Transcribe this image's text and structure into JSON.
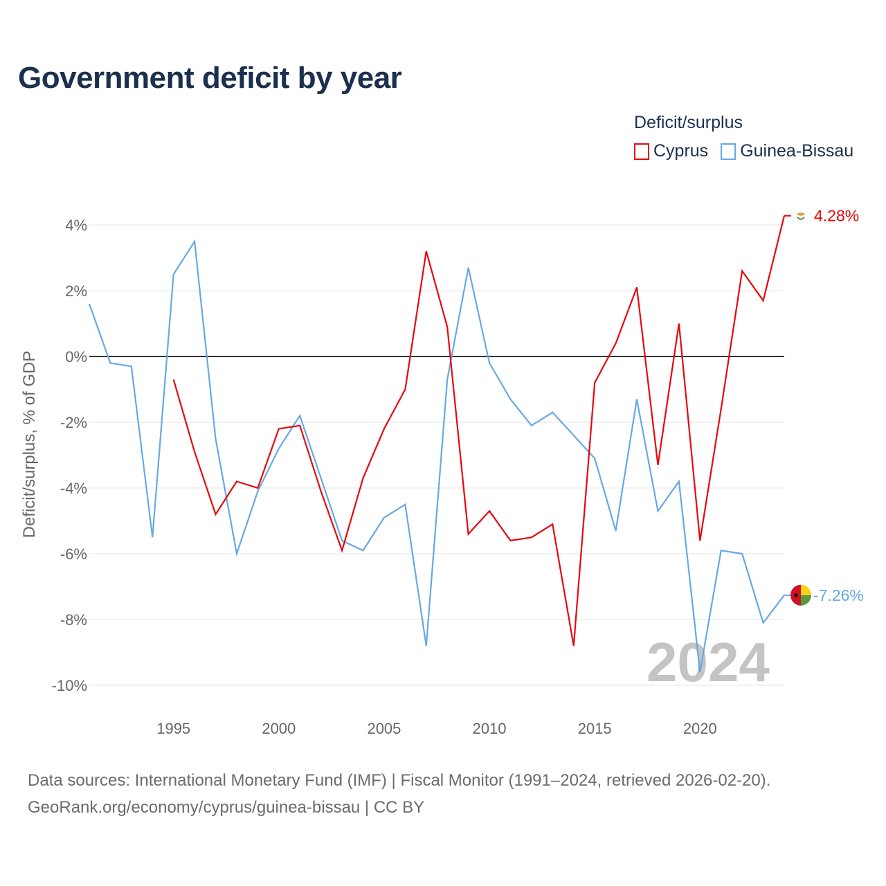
{
  "title": "Government deficit by year",
  "legend_title": "Deficit/surplus",
  "year_watermark": "2024",
  "source_line1": "Data sources: International Monetary Fund (IMF) | Fiscal Monitor (1991–2024, retrieved 2026-02-20).",
  "source_line2": "GeoRank.org/economy/cyprus/guinea-bissau | CC BY",
  "chart_data": {
    "type": "line",
    "title": "Government deficit by year",
    "xlabel": "",
    "ylabel": "Deficit/surplus, % of GDP",
    "xlim": [
      1991,
      2024
    ],
    "ylim": [
      -10,
      4.5
    ],
    "x_ticks": [
      1995,
      2000,
      2005,
      2010,
      2015,
      2020
    ],
    "y_ticks": [
      4,
      2,
      0,
      -2,
      -4,
      -6,
      -8,
      -10
    ],
    "y_tick_labels": [
      "4%",
      "2%",
      "0%",
      "-2%",
      "-4%",
      "-6%",
      "-8%",
      "-10%"
    ],
    "legend_position": "top-right",
    "series": [
      {
        "name": "Cyprus",
        "color": "#e8060c",
        "end_label": "4.28%",
        "points": [
          [
            1995,
            -0.7
          ],
          [
            1996,
            -2.9
          ],
          [
            1997,
            -4.8
          ],
          [
            1998,
            -3.8
          ],
          [
            1999,
            -4.0
          ],
          [
            2000,
            -2.2
          ],
          [
            2001,
            -2.1
          ],
          [
            2002,
            -4.1
          ],
          [
            2003,
            -5.9
          ],
          [
            2004,
            -3.7
          ],
          [
            2005,
            -2.2
          ],
          [
            2006,
            -1.0
          ],
          [
            2007,
            3.2
          ],
          [
            2008,
            0.9
          ],
          [
            2009,
            -5.4
          ],
          [
            2010,
            -4.7
          ],
          [
            2011,
            -5.6
          ],
          [
            2012,
            -5.5
          ],
          [
            2013,
            -5.1
          ],
          [
            2014,
            -8.8
          ],
          [
            2015,
            -0.8
          ],
          [
            2016,
            0.4
          ],
          [
            2017,
            2.1
          ],
          [
            2018,
            -3.3
          ],
          [
            2019,
            1.0
          ],
          [
            2020,
            -5.6
          ],
          [
            2021,
            -1.6
          ],
          [
            2022,
            2.6
          ],
          [
            2023,
            1.7
          ],
          [
            2024,
            4.28
          ]
        ]
      },
      {
        "name": "Guinea-Bissau",
        "color": "#66a8e6",
        "end_label": "-7.26%",
        "points": [
          [
            1991,
            1.6
          ],
          [
            1992,
            -0.2
          ],
          [
            1993,
            -0.3
          ],
          [
            1994,
            -5.5
          ],
          [
            1995,
            2.5
          ],
          [
            1996,
            3.5
          ],
          [
            1997,
            -2.5
          ],
          [
            1998,
            -6.0
          ],
          [
            1999,
            -4.1
          ],
          [
            2000,
            -2.8
          ],
          [
            2001,
            -1.8
          ],
          [
            2002,
            -3.7
          ],
          [
            2003,
            -5.6
          ],
          [
            2004,
            -5.9
          ],
          [
            2005,
            -4.9
          ],
          [
            2006,
            -4.5
          ],
          [
            2007,
            -8.8
          ],
          [
            2008,
            -0.7
          ],
          [
            2009,
            2.7
          ],
          [
            2010,
            -0.2
          ],
          [
            2011,
            -1.3
          ],
          [
            2012,
            -2.1
          ],
          [
            2013,
            -1.7
          ],
          [
            2014,
            -2.4
          ],
          [
            2015,
            -3.1
          ],
          [
            2016,
            -5.3
          ],
          [
            2017,
            -1.3
          ],
          [
            2018,
            -4.7
          ],
          [
            2019,
            -3.8
          ],
          [
            2020,
            -9.6
          ],
          [
            2021,
            -5.9
          ],
          [
            2022,
            -6.0
          ],
          [
            2023,
            -8.1
          ],
          [
            2024,
            -7.26
          ]
        ]
      }
    ]
  }
}
